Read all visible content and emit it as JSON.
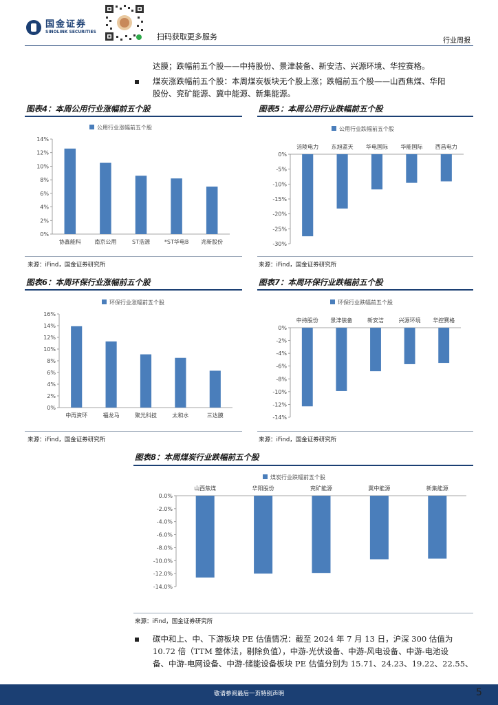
{
  "header": {
    "logo_cn": "国金证券",
    "logo_en": "SINOLINK SECURITIES",
    "qr_caption": "扫码获取更多服务",
    "section": "行业周报"
  },
  "body_text": {
    "line1": "达膜；跌幅前五个股——中持股份、景津装备、新安洁、兴源环境、华控赛格。",
    "line2": "煤炭涨跌幅前五个股：本周煤炭板块无个股上涨；跌幅前五个股——山西焦煤、华阳",
    "line3": "股份、兖矿能源、冀中能源、新集能源。",
    "line4": "碳中和上、中、下游板块 PE 估值情况：截至 2024 年 7 月 13 日，沪深 300 估值为",
    "line5": "10.72 倍（TTM 整体法，剔除负值），中游-光伏设备、中游-风电设备、中游-电池设",
    "line6": "备、中游-电网设备、中游-储能设备板块 PE 估值分别为 15.71、24.23、19.22、22.55、"
  },
  "footer": {
    "disclaimer": "敬请参阅最后一页特别声明",
    "page": "5"
  },
  "chart_data": [
    {
      "id": "fig4",
      "type": "bar",
      "title": "图表4：本周公用行业涨幅前五个股",
      "legend": "公用行业涨幅前五个股",
      "categories": [
        "协鑫能科",
        "南京公用",
        "ST浩源",
        "*ST华电B",
        "兆新股份"
      ],
      "values": [
        12.6,
        10.5,
        8.6,
        8.2,
        7.0
      ],
      "ylim": [
        0,
        14
      ],
      "ytick_step": 2,
      "yticks": [
        "0%",
        "2%",
        "4%",
        "6%",
        "8%",
        "10%",
        "12%",
        "14%"
      ],
      "source": "来源：iFind，国金证券研究所",
      "color": "#4a7ebb"
    },
    {
      "id": "fig5",
      "type": "bar",
      "title": "图表5：本周公用行业跌幅前五个股",
      "legend": "公用行业跌幅前五个股",
      "categories": [
        "涪陵电力",
        "东旭蓝天",
        "华电国际",
        "华能国际",
        "西昌电力"
      ],
      "values": [
        -27.5,
        -18.2,
        -11.8,
        -9.6,
        -9.1
      ],
      "ylim": [
        -30,
        0
      ],
      "ytick_step": 5,
      "yticks": [
        "0%",
        "-5%",
        "-10%",
        "-15%",
        "-20%",
        "-25%",
        "-30%"
      ],
      "source": "来源：iFind，国金证券研究所",
      "color": "#4a7ebb"
    },
    {
      "id": "fig6",
      "type": "bar",
      "title": "图表6：本周环保行业涨幅前五个股",
      "legend": "环保行业涨幅前五个股",
      "categories": [
        "中再资环",
        "福龙马",
        "聚光科技",
        "太和水",
        "三达膜"
      ],
      "values": [
        13.9,
        11.3,
        9.1,
        8.5,
        6.3
      ],
      "ylim": [
        0,
        16
      ],
      "ytick_step": 2,
      "yticks": [
        "0%",
        "2%",
        "4%",
        "6%",
        "8%",
        "10%",
        "12%",
        "14%",
        "16%"
      ],
      "source": "来源：iFind，国金证券研究所",
      "color": "#4a7ebb"
    },
    {
      "id": "fig7",
      "type": "bar",
      "title": "图表7：本周环保行业跌幅前五个股",
      "legend": "环保行业跌幅前五个股",
      "categories": [
        "中持股份",
        "景津装备",
        "新安洁",
        "兴源环境",
        "华控赛格"
      ],
      "values": [
        -12.3,
        -9.9,
        -6.8,
        -5.7,
        -5.5
      ],
      "ylim": [
        -14,
        0
      ],
      "ytick_step": 2,
      "yticks": [
        "0%",
        "-2%",
        "-4%",
        "-6%",
        "-8%",
        "-10%",
        "-12%",
        "-14%"
      ],
      "source": "来源：iFind，国金证券研究所",
      "color": "#4a7ebb"
    },
    {
      "id": "fig8",
      "type": "bar",
      "title": "图表8：本周煤炭行业跌幅前五个股",
      "legend": "煤炭行业跌幅前五个股",
      "categories": [
        "山西焦煤",
        "华阳股份",
        "兖矿能源",
        "冀中能源",
        "新集能源"
      ],
      "values": [
        -12.6,
        -12.0,
        -11.9,
        -9.8,
        -9.7
      ],
      "ylim": [
        -14,
        0
      ],
      "ytick_step": 2,
      "yticks": [
        "0.0%",
        "-2.0%",
        "-4.0%",
        "-6.0%",
        "-8.0%",
        "-10.0%",
        "-12.0%",
        "-14.0%"
      ],
      "source": "来源：iFind，国金证券研究所",
      "color": "#4a7ebb"
    }
  ]
}
